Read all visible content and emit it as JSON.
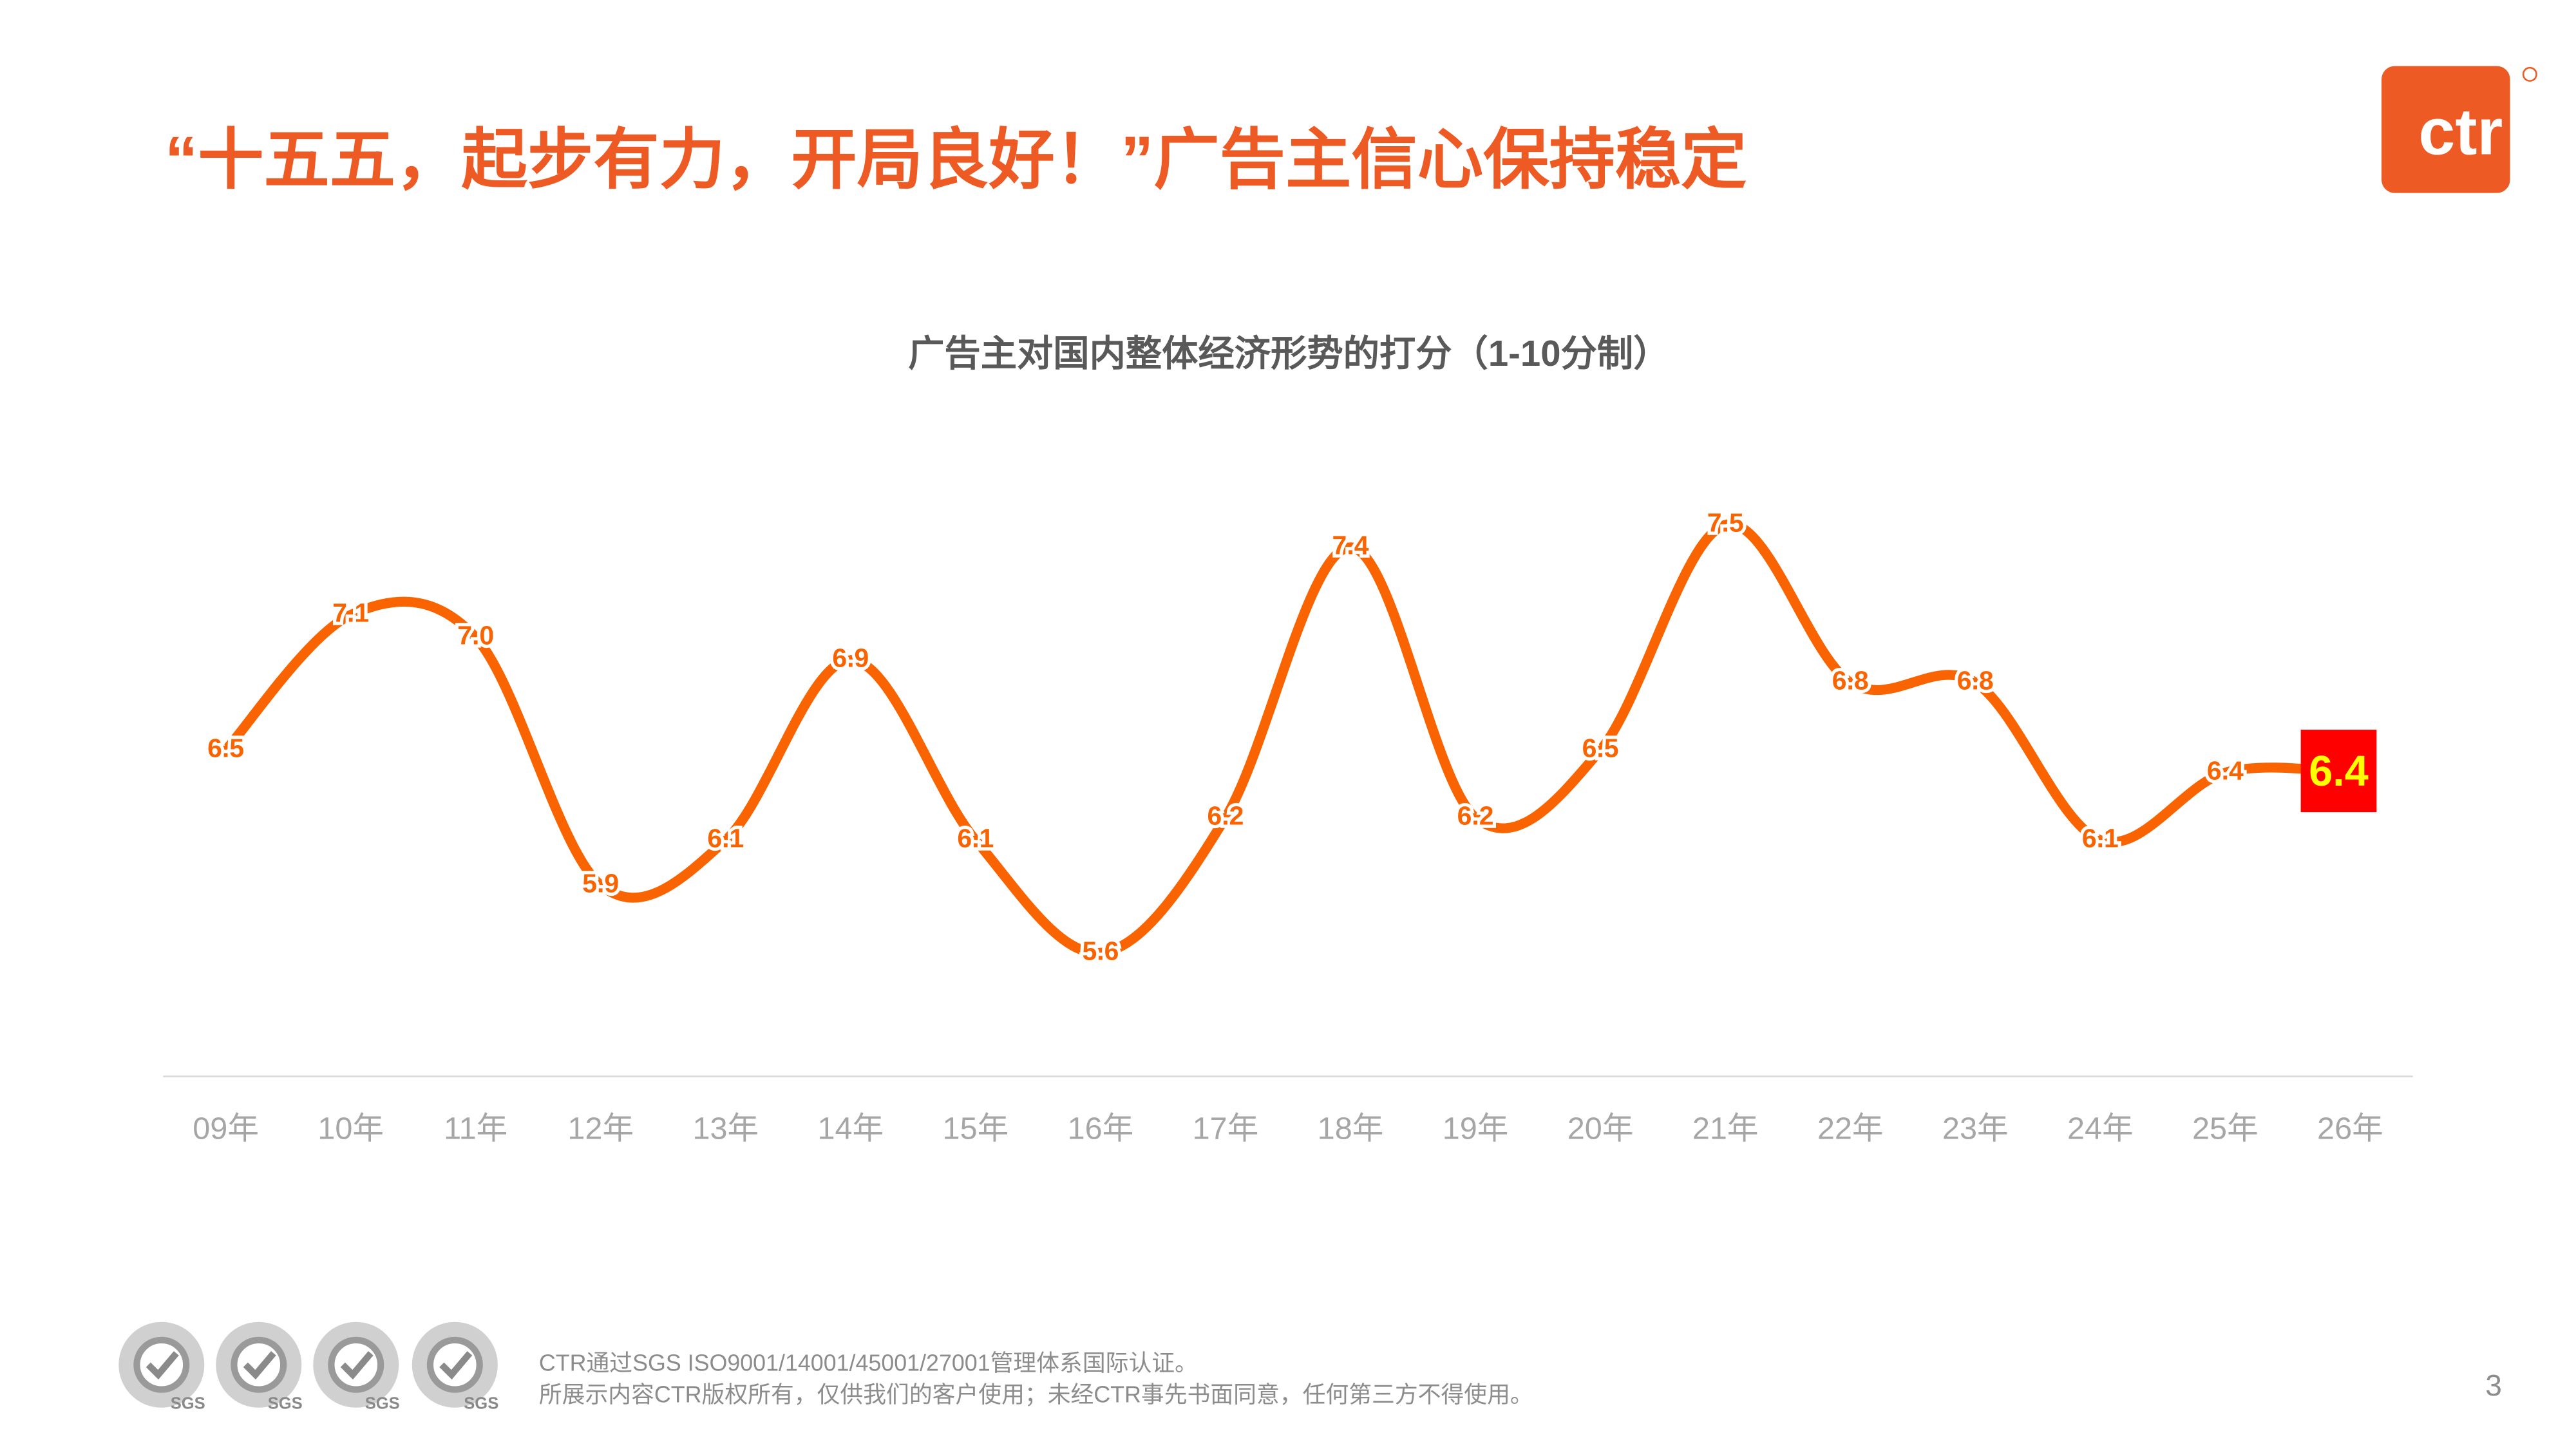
{
  "header": {
    "title": "“十五五，起步有力，开局良好！”广告主信心保持稳定",
    "logo": "ctr"
  },
  "chart_data": {
    "type": "line",
    "title": "广告主对国内整体经济形势的打分（1-10分制）",
    "categories": [
      "09年",
      "10年",
      "11年",
      "12年",
      "13年",
      "14年",
      "15年",
      "16年",
      "17年",
      "18年",
      "19年",
      "20年",
      "21年",
      "22年",
      "23年",
      "24年",
      "25年",
      "26年"
    ],
    "values": [
      6.5,
      7.1,
      7.0,
      5.9,
      6.1,
      6.9,
      6.1,
      5.6,
      6.2,
      7.4,
      6.2,
      6.5,
      7.5,
      6.8,
      6.8,
      6.1,
      6.4,
      6.4
    ],
    "value_labels": [
      "6.5",
      "7.1",
      "7.0",
      "5.9",
      "6.1",
      "6.9",
      "6.1",
      "5.6",
      "6.2",
      "7.4",
      "6.2",
      "6.5",
      "7.5",
      "6.8",
      "6.8",
      "6.1",
      "6.4",
      "6.4"
    ],
    "color": "#fa6400",
    "ylim": [
      5,
      8
    ],
    "smooth": true,
    "grid": false
  },
  "footer": {
    "badge_label": "SGS",
    "lines": [
      "CTR通过SGS ISO9001/14001/45001/27001管理体系国际认证。",
      "所展示内容CTR版权所有，仅供我们的客户使用；未经CTR事先书面同意，任何第三方不得使用。"
    ],
    "page_number": "3"
  }
}
